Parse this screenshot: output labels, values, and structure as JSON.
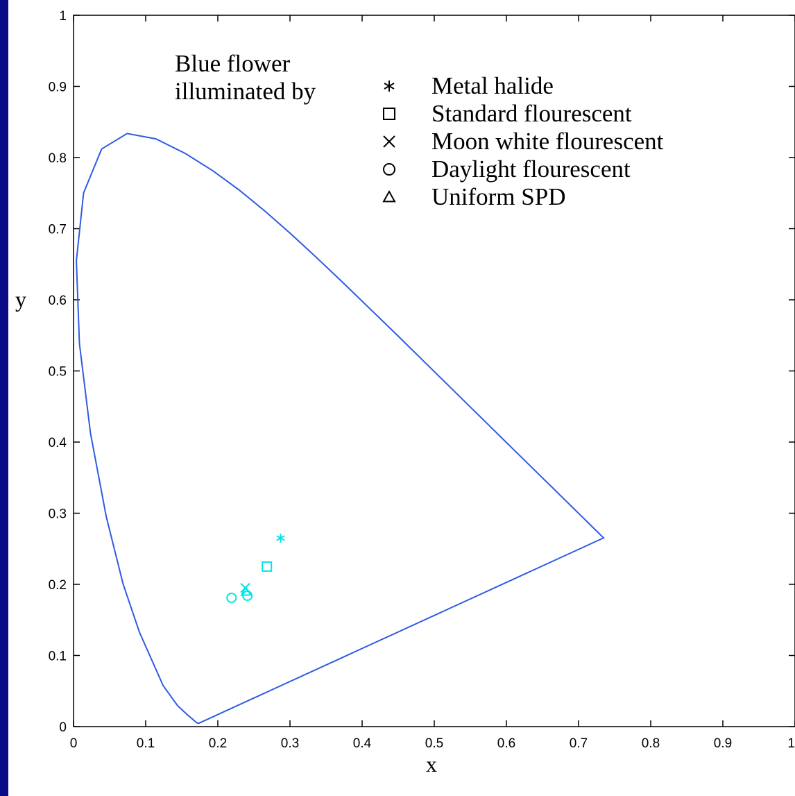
{
  "chart_data": {
    "type": "scatter",
    "title": "",
    "xlabel": "x",
    "ylabel": "y",
    "xlim": [
      0,
      1
    ],
    "ylim": [
      0,
      1
    ],
    "x_ticks": [
      "0",
      "0.1",
      "0.2",
      "0.3",
      "0.4",
      "0.5",
      "0.6",
      "0.7",
      "0.8",
      "0.9",
      "1"
    ],
    "y_ticks": [
      "0",
      "0.1",
      "0.2",
      "0.3",
      "0.4",
      "0.5",
      "0.6",
      "0.7",
      "0.8",
      "0.9",
      "1"
    ],
    "grid": false,
    "annotation": [
      "Blue flower",
      "illuminated by"
    ],
    "legend_placement": "top-right",
    "legend": [
      {
        "marker": "*",
        "label": "Metal halide"
      },
      {
        "marker": "square",
        "label": "Standard flourescent"
      },
      {
        "marker": "x",
        "label": "Moon white flourescent"
      },
      {
        "marker": "circle",
        "label": "Daylight flourescent"
      },
      {
        "marker": "triangle",
        "label": "Uniform SPD"
      }
    ],
    "series": [
      {
        "marker": "*",
        "x": [
          0.287
        ],
        "y": [
          0.265
        ]
      },
      {
        "marker": "square",
        "x": [
          0.268
        ],
        "y": [
          0.225
        ]
      },
      {
        "marker": "x",
        "x": [
          0.238
        ],
        "y": [
          0.195
        ]
      },
      {
        "marker": "circle",
        "x": [
          0.219,
          0.241
        ],
        "y": [
          0.181,
          0.184
        ]
      },
      {
        "marker": "triangle",
        "x": [
          0.239
        ],
        "y": [
          0.19
        ]
      }
    ],
    "locus": {
      "x": [
        0.1741,
        0.1738,
        0.1733,
        0.1726,
        0.1714,
        0.1689,
        0.1644,
        0.1566,
        0.144,
        0.1241,
        0.0913,
        0.0687,
        0.0454,
        0.0235,
        0.0082,
        0.0039,
        0.0139,
        0.0389,
        0.0743,
        0.1142,
        0.1547,
        0.1929,
        0.2296,
        0.2658,
        0.3016,
        0.3373,
        0.3731,
        0.4087,
        0.4441,
        0.4788,
        0.5125,
        0.5448,
        0.5752,
        0.6029,
        0.627,
        0.6482,
        0.6658,
        0.6801,
        0.6915,
        0.7006,
        0.7079,
        0.714,
        0.719,
        0.723,
        0.726,
        0.7283,
        0.73,
        0.7311,
        0.732,
        0.7327,
        0.7334,
        0.734,
        0.7344,
        0.7346,
        0.7347
      ],
      "y": [
        0.005,
        0.0049,
        0.0048,
        0.0048,
        0.0051,
        0.0069,
        0.0109,
        0.0177,
        0.0297,
        0.0578,
        0.1327,
        0.2007,
        0.295,
        0.4127,
        0.5384,
        0.6548,
        0.7502,
        0.812,
        0.8338,
        0.8262,
        0.8059,
        0.7816,
        0.7543,
        0.7243,
        0.6923,
        0.6589,
        0.6245,
        0.5896,
        0.5547,
        0.5202,
        0.4866,
        0.4544,
        0.4242,
        0.3965,
        0.3725,
        0.3514,
        0.334,
        0.3197,
        0.3083,
        0.2993,
        0.292,
        0.2859,
        0.2809,
        0.277,
        0.274,
        0.2717,
        0.27,
        0.2689,
        0.268,
        0.2673,
        0.2666,
        0.266,
        0.2656,
        0.2654,
        0.2653
      ]
    },
    "colors": {
      "background": "#0a0a84",
      "plot_area": "#ffffff",
      "locus": "#2d5be3",
      "markers": "#00e5e5"
    }
  }
}
